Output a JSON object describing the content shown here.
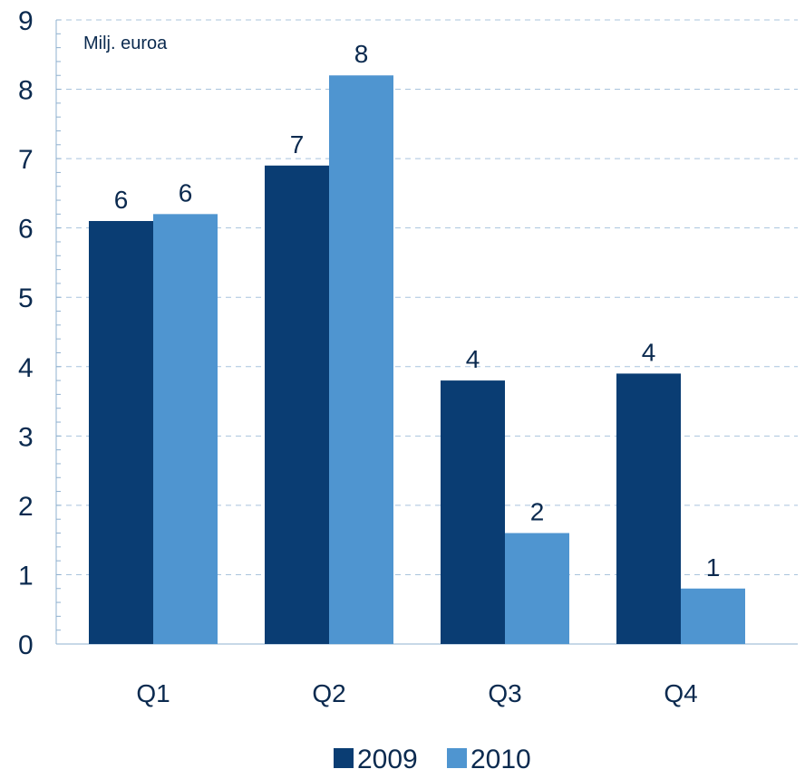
{
  "chart_data": {
    "type": "bar",
    "unit_label": "Milj. euroa",
    "categories": [
      "Q1",
      "Q2",
      "Q3",
      "Q4"
    ],
    "series": [
      {
        "name": "2009",
        "color": "#0a3d73",
        "values": [
          6.1,
          6.9,
          3.8,
          3.9
        ],
        "labels": [
          "6",
          "7",
          "4",
          "4"
        ]
      },
      {
        "name": "2010",
        "color": "#4f95d0",
        "values": [
          6.2,
          8.2,
          1.6,
          0.8
        ],
        "labels": [
          "6",
          "8",
          "2",
          "1"
        ]
      }
    ],
    "ylim": [
      0,
      9
    ],
    "yticks": [
      0,
      1,
      2,
      3,
      4,
      5,
      6,
      7,
      8,
      9
    ],
    "grid": true,
    "legend": "bottom"
  }
}
